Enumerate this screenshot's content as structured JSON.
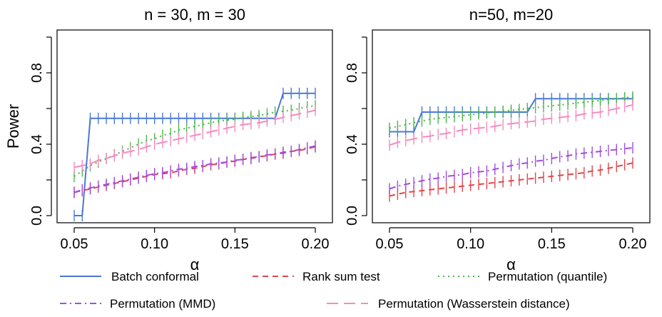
{
  "chart_data": [
    {
      "type": "line",
      "title": "n = 30, m = 30",
      "xlabel": "α",
      "ylabel": "Power",
      "xlim": [
        0.05,
        0.2
      ],
      "ylim": [
        0.0,
        1.0
      ],
      "xticks": [
        "0.05",
        "0.10",
        "0.15",
        "0.20"
      ],
      "yticks": [
        "0.0",
        "0.4",
        "0.8"
      ],
      "x": [
        0.05,
        0.055,
        0.06,
        0.065,
        0.07,
        0.075,
        0.08,
        0.085,
        0.09,
        0.095,
        0.1,
        0.105,
        0.11,
        0.115,
        0.12,
        0.125,
        0.13,
        0.135,
        0.14,
        0.145,
        0.15,
        0.155,
        0.16,
        0.165,
        0.17,
        0.175,
        0.18,
        0.185,
        0.19,
        0.195,
        0.2
      ],
      "series": [
        {
          "name": "Batch conformal",
          "values": [
            0.0,
            0.0,
            0.545,
            0.545,
            0.545,
            0.545,
            0.545,
            0.545,
            0.545,
            0.545,
            0.545,
            0.545,
            0.545,
            0.545,
            0.545,
            0.545,
            0.545,
            0.545,
            0.545,
            0.545,
            0.545,
            0.545,
            0.545,
            0.545,
            0.545,
            0.545,
            0.685,
            0.685,
            0.685,
            0.685,
            0.685
          ]
        },
        {
          "name": "Rank sum test",
          "values": [
            0.13,
            0.14,
            0.15,
            0.16,
            0.17,
            0.18,
            0.19,
            0.2,
            0.21,
            0.22,
            0.23,
            0.235,
            0.24,
            0.25,
            0.26,
            0.265,
            0.275,
            0.285,
            0.29,
            0.3,
            0.305,
            0.315,
            0.32,
            0.33,
            0.335,
            0.345,
            0.35,
            0.36,
            0.365,
            0.375,
            0.385
          ]
        },
        {
          "name": "Permutation (quantile)",
          "values": [
            0.22,
            0.25,
            0.28,
            0.3,
            0.32,
            0.34,
            0.36,
            0.38,
            0.4,
            0.42,
            0.43,
            0.45,
            0.46,
            0.48,
            0.49,
            0.5,
            0.51,
            0.52,
            0.53,
            0.535,
            0.54,
            0.55,
            0.555,
            0.56,
            0.57,
            0.58,
            0.585,
            0.59,
            0.6,
            0.61,
            0.615
          ]
        },
        {
          "name": "Permutation (MMD)",
          "values": [
            0.13,
            0.145,
            0.155,
            0.165,
            0.175,
            0.185,
            0.195,
            0.205,
            0.215,
            0.225,
            0.235,
            0.24,
            0.25,
            0.26,
            0.265,
            0.275,
            0.28,
            0.29,
            0.295,
            0.3,
            0.31,
            0.315,
            0.325,
            0.33,
            0.34,
            0.345,
            0.355,
            0.36,
            0.37,
            0.38,
            0.39
          ]
        },
        {
          "name": "Permutation (Wasserstein distance)",
          "values": [
            0.27,
            0.28,
            0.29,
            0.31,
            0.32,
            0.335,
            0.35,
            0.36,
            0.37,
            0.385,
            0.4,
            0.41,
            0.42,
            0.43,
            0.44,
            0.45,
            0.46,
            0.47,
            0.48,
            0.49,
            0.5,
            0.51,
            0.515,
            0.52,
            0.53,
            0.54,
            0.55,
            0.56,
            0.57,
            0.58,
            0.59
          ]
        }
      ]
    },
    {
      "type": "line",
      "title": "n=50, m=20",
      "xlabel": "α",
      "ylabel": "",
      "xlim": [
        0.05,
        0.2
      ],
      "ylim": [
        0.0,
        1.0
      ],
      "xticks": [
        "0.05",
        "0.10",
        "0.15",
        "0.20"
      ],
      "yticks": [
        "0.0",
        "0.4",
        "0.8"
      ],
      "x": [
        0.05,
        0.055,
        0.06,
        0.065,
        0.07,
        0.075,
        0.08,
        0.085,
        0.09,
        0.095,
        0.1,
        0.105,
        0.11,
        0.115,
        0.12,
        0.125,
        0.13,
        0.135,
        0.14,
        0.145,
        0.15,
        0.155,
        0.16,
        0.165,
        0.17,
        0.175,
        0.18,
        0.185,
        0.19,
        0.195,
        0.2
      ],
      "series": [
        {
          "name": "Batch conformal",
          "values": [
            0.47,
            0.47,
            0.47,
            0.47,
            0.58,
            0.58,
            0.58,
            0.58,
            0.58,
            0.58,
            0.58,
            0.58,
            0.58,
            0.58,
            0.58,
            0.58,
            0.58,
            0.58,
            0.655,
            0.655,
            0.655,
            0.655,
            0.655,
            0.655,
            0.655,
            0.655,
            0.655,
            0.655,
            0.655,
            0.655,
            0.655
          ]
        },
        {
          "name": "Rank sum test",
          "values": [
            0.11,
            0.12,
            0.13,
            0.135,
            0.14,
            0.145,
            0.15,
            0.155,
            0.16,
            0.165,
            0.17,
            0.175,
            0.18,
            0.185,
            0.19,
            0.195,
            0.2,
            0.205,
            0.21,
            0.215,
            0.22,
            0.225,
            0.23,
            0.235,
            0.24,
            0.25,
            0.255,
            0.265,
            0.275,
            0.285,
            0.295
          ]
        },
        {
          "name": "Permutation (quantile)",
          "values": [
            0.49,
            0.5,
            0.51,
            0.52,
            0.53,
            0.54,
            0.545,
            0.55,
            0.555,
            0.56,
            0.565,
            0.57,
            0.575,
            0.58,
            0.585,
            0.59,
            0.595,
            0.6,
            0.605,
            0.61,
            0.615,
            0.62,
            0.625,
            0.63,
            0.635,
            0.64,
            0.645,
            0.65,
            0.655,
            0.66,
            0.665
          ]
        },
        {
          "name": "Permutation (MMD)",
          "values": [
            0.15,
            0.165,
            0.175,
            0.185,
            0.195,
            0.205,
            0.21,
            0.22,
            0.225,
            0.23,
            0.24,
            0.245,
            0.25,
            0.26,
            0.27,
            0.28,
            0.29,
            0.295,
            0.305,
            0.31,
            0.32,
            0.33,
            0.335,
            0.345,
            0.35,
            0.355,
            0.36,
            0.365,
            0.37,
            0.375,
            0.38
          ]
        },
        {
          "name": "Permutation (Wasserstein distance)",
          "values": [
            0.395,
            0.41,
            0.42,
            0.43,
            0.44,
            0.445,
            0.455,
            0.46,
            0.47,
            0.48,
            0.485,
            0.49,
            0.495,
            0.5,
            0.51,
            0.515,
            0.52,
            0.525,
            0.53,
            0.54,
            0.545,
            0.55,
            0.555,
            0.56,
            0.57,
            0.575,
            0.58,
            0.59,
            0.6,
            0.61,
            0.62
          ]
        }
      ]
    }
  ],
  "legend": {
    "items": [
      {
        "label": "Batch conformal",
        "color": "#4a78d8",
        "dash": "solid"
      },
      {
        "label": "Rank sum test",
        "color": "#e0474c",
        "dash": "dashed"
      },
      {
        "label": "Permutation (quantile)",
        "color": "#4cb84c",
        "dash": "dotted"
      },
      {
        "label": "Permutation (MMD)",
        "color": "#a24fd9",
        "dash": "dashdot"
      },
      {
        "label": "Permutation (Wasserstein distance)",
        "color": "#f38cbf",
        "dash": "longdash"
      }
    ]
  }
}
